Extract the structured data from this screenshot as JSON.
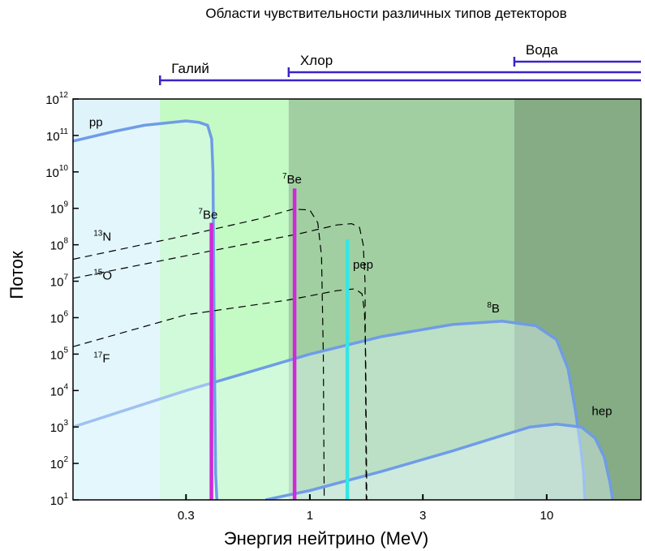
{
  "chart_data": {
    "type": "line",
    "title": "Области чувствительности различных типов детекторов",
    "xlabel": "Энергия нейтрино (MeV)",
    "ylabel": "Поток",
    "xscale": "log",
    "yscale": "log",
    "xlim": [
      0.1,
      25
    ],
    "ylim": [
      10,
      1000000000000
    ],
    "x_ticks": [
      {
        "value": 0.3,
        "label": "0.3"
      },
      {
        "value": 1,
        "label": "1"
      },
      {
        "value": 3,
        "label": "3"
      },
      {
        "value": 10,
        "label": "10"
      }
    ],
    "y_ticks": [
      {
        "value": 10,
        "base": "10",
        "exp": "1"
      },
      {
        "value": 100,
        "base": "10",
        "exp": "2"
      },
      {
        "value": 1000,
        "base": "10",
        "exp": "3"
      },
      {
        "value": 10000,
        "base": "10",
        "exp": "4"
      },
      {
        "value": 100000,
        "base": "10",
        "exp": "5"
      },
      {
        "value": 1000000,
        "base": "10",
        "exp": "6"
      },
      {
        "value": 10000000,
        "base": "10",
        "exp": "7"
      },
      {
        "value": 100000000,
        "base": "10",
        "exp": "8"
      },
      {
        "value": 1000000000,
        "base": "10",
        "exp": "9"
      },
      {
        "value": 10000000000,
        "base": "10",
        "exp": "10"
      },
      {
        "value": 100000000000,
        "base": "10",
        "exp": "11"
      },
      {
        "value": 1000000000000,
        "base": "10",
        "exp": "12"
      }
    ],
    "detector_regions": [
      {
        "name": "Галий",
        "threshold": 0.233,
        "color": "#c4fbc4"
      },
      {
        "name": "Хлор",
        "threshold": 0.814,
        "color": "#a1cfa1"
      },
      {
        "name": "Вода",
        "threshold": 7.3,
        "color": "#85ac85"
      }
    ],
    "detector_bar_color": "#3a24c8",
    "continuum_color": "#6f9ce6",
    "cno_color": "#000000",
    "series": [
      {
        "name": "pp",
        "style": "solid",
        "sup": "",
        "label_text": "pp",
        "label_at": [
          0.117,
          180000000000
        ],
        "points": [
          [
            0.1,
            70000000000
          ],
          [
            0.15,
            130000000000
          ],
          [
            0.2,
            190000000000
          ],
          [
            0.3,
            250000000000
          ],
          [
            0.34,
            230000000000
          ],
          [
            0.37,
            190000000000
          ],
          [
            0.385,
            80000000000
          ],
          [
            0.39,
            10000000000
          ],
          [
            0.395,
            100000
          ],
          [
            0.4,
            50
          ],
          [
            0.405,
            10
          ]
        ]
      },
      {
        "name": "8B",
        "style": "solid",
        "sup": "8",
        "label_text": "B",
        "label_at": [
          5.6,
          1400000
        ],
        "points": [
          [
            0.1,
            1000
          ],
          [
            0.3,
            10000
          ],
          [
            1,
            100000
          ],
          [
            2,
            300000
          ],
          [
            4,
            650000
          ],
          [
            6.5,
            800000
          ],
          [
            9,
            600000
          ],
          [
            11,
            250000
          ],
          [
            12.3,
            40000
          ],
          [
            13.2,
            3000
          ],
          [
            13.9,
            300
          ],
          [
            14.3,
            60
          ],
          [
            14.5,
            10
          ]
        ]
      },
      {
        "name": "hep",
        "style": "solid",
        "sup": "",
        "label_text": "hep",
        "label_at": [
          15.5,
          2100
        ],
        "points": [
          [
            0.65,
            10
          ],
          [
            1,
            18
          ],
          [
            2,
            60
          ],
          [
            4,
            220
          ],
          [
            6,
            500
          ],
          [
            8.5,
            1000
          ],
          [
            11,
            1200
          ],
          [
            14,
            1000
          ],
          [
            16,
            500
          ],
          [
            17.5,
            150
          ],
          [
            18.5,
            30
          ],
          [
            19,
            10
          ]
        ]
      },
      {
        "name": "13N",
        "style": "dashed",
        "sup": "13",
        "label_text": "N",
        "label_at": [
          0.122,
          130000000
        ],
        "points": [
          [
            0.1,
            40000000
          ],
          [
            0.3,
            180000000
          ],
          [
            0.6,
            500000000
          ],
          [
            0.85,
            950000000
          ],
          [
            1.0,
            900000000
          ],
          [
            1.08,
            400000000
          ],
          [
            1.12,
            50000000
          ],
          [
            1.14,
            100000
          ],
          [
            1.15,
            10
          ]
        ]
      },
      {
        "name": "15O",
        "style": "dashed",
        "sup": "15",
        "label_text": "O",
        "label_at": [
          0.122,
          11000000
        ],
        "points": [
          [
            0.1,
            12000000
          ],
          [
            0.3,
            50000000
          ],
          [
            0.9,
            200000000
          ],
          [
            1.3,
            350000000
          ],
          [
            1.5,
            380000000
          ],
          [
            1.62,
            300000000
          ],
          [
            1.68,
            100000000
          ],
          [
            1.71,
            10000000
          ],
          [
            1.73,
            10
          ]
        ]
      },
      {
        "name": "17F",
        "style": "dashed",
        "sup": "17",
        "label_text": "F",
        "label_at": [
          0.122,
          60000
        ],
        "points": [
          [
            0.1,
            160000
          ],
          [
            0.3,
            1200000
          ],
          [
            0.8,
            3000000
          ],
          [
            1.3,
            5500000
          ],
          [
            1.55,
            6200000
          ],
          [
            1.66,
            4500000
          ],
          [
            1.7,
            1500000
          ],
          [
            1.72,
            100000
          ],
          [
            1.74,
            10
          ]
        ]
      },
      {
        "name": "7Be (0.384 MeV)",
        "style": "line",
        "sup": "7",
        "label_text": "Be",
        "label_at": [
          0.338,
          520000000
        ],
        "energy": 0.384,
        "flux": 400000000,
        "color": "#d128d9"
      },
      {
        "name": "7Be (0.862 MeV)",
        "style": "line",
        "sup": "7",
        "label_text": "Be",
        "label_at": [
          0.765,
          4800000000
        ],
        "energy": 0.862,
        "flux": 3500000000,
        "color": "#d128d9"
      },
      {
        "name": "pep",
        "style": "line",
        "sup": "",
        "label_text": "pep",
        "label_at": [
          1.52,
          22000000
        ],
        "energy": 1.44,
        "flux": 140000000,
        "color": "#33e6e6"
      }
    ]
  }
}
